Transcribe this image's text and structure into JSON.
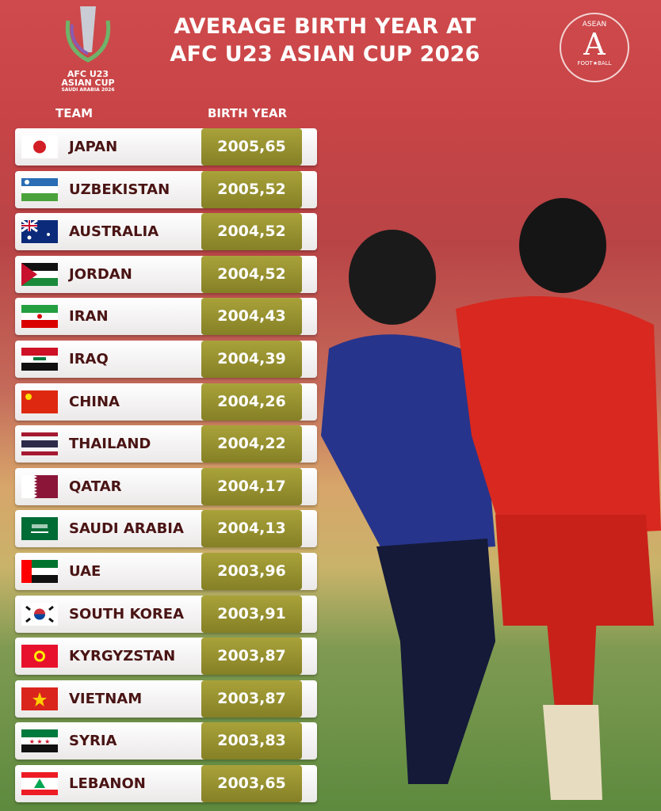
{
  "title_line1": "AVERAGE BIRTH YEAR AT",
  "title_line2": "AFC U23 ASIAN CUP 2026",
  "logo_left": {
    "line1": "AFC U23",
    "line2": "ASIAN CUP",
    "line3": "SAUDI ARABIA 2026"
  },
  "logo_right": {
    "top": "ASEAN",
    "bottom": "FOOT★BALL",
    "letter": "A"
  },
  "colors": {
    "header_bg": "#cf4a4c",
    "value_box": "#9a9432",
    "team_text": "#4a1414"
  },
  "chart_data": {
    "type": "table",
    "title": "AVERAGE BIRTH YEAR AT AFC U23 ASIAN CUP 2026",
    "columns": [
      "TEAM",
      "BIRTH YEAR"
    ],
    "rows": [
      {
        "team": "JAPAN",
        "flag": "jp",
        "value": "2005,65"
      },
      {
        "team": "UZBEKISTAN",
        "flag": "uz",
        "value": "2005,52"
      },
      {
        "team": "AUSTRALIA",
        "flag": "au",
        "value": "2004,52"
      },
      {
        "team": "JORDAN",
        "flag": "jo",
        "value": "2004,52"
      },
      {
        "team": "IRAN",
        "flag": "ir",
        "value": "2004,43"
      },
      {
        "team": "IRAQ",
        "flag": "iq",
        "value": "2004,39"
      },
      {
        "team": "CHINA",
        "flag": "cn",
        "value": "2004,26"
      },
      {
        "team": "THAILAND",
        "flag": "th",
        "value": "2004,22"
      },
      {
        "team": "QATAR",
        "flag": "qa",
        "value": "2004,17"
      },
      {
        "team": "SAUDI ARABIA",
        "flag": "sa",
        "value": "2004,13"
      },
      {
        "team": "UAE",
        "flag": "ae",
        "value": "2003,96"
      },
      {
        "team": "SOUTH KOREA",
        "flag": "kr",
        "value": "2003,91"
      },
      {
        "team": "KYRGYZSTAN",
        "flag": "kg",
        "value": "2003,87"
      },
      {
        "team": "VIETNAM",
        "flag": "vn",
        "value": "2003,87"
      },
      {
        "team": "SYRIA",
        "flag": "sy",
        "value": "2003,83"
      },
      {
        "team": "LEBANON",
        "flag": "lb",
        "value": "2003,65"
      }
    ]
  }
}
